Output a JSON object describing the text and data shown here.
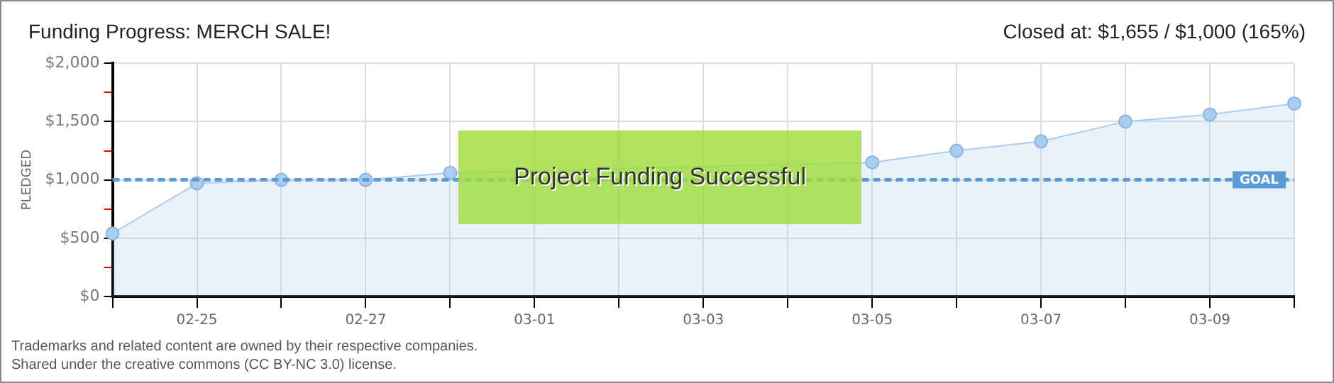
{
  "chart_data": {
    "type": "area",
    "title": "Funding Progress: MERCH SALE!",
    "subtitle": "Closed at: $1,655 / $1,000 (165%)",
    "ylabel": "PLEDGED",
    "categories": [
      null,
      "02-25",
      null,
      "02-27",
      null,
      "03-01",
      null,
      "03-03",
      null,
      "03-05",
      null,
      "03-07",
      null,
      "03-09",
      null
    ],
    "series": [
      {
        "color": "#a9cdf0",
        "values": [
          540,
          970,
          1000,
          1000,
          1060,
          null,
          null,
          null,
          null,
          1150,
          1250,
          1330,
          1500,
          1560,
          1655
        ]
      }
    ],
    "ylim": [
      0,
      2000
    ],
    "yticks": [
      {
        "value": 0,
        "label": "$0"
      },
      {
        "value": 250,
        "label": null
      },
      {
        "value": 500,
        "label": "$500"
      },
      {
        "value": 750,
        "label": null
      },
      {
        "value": 1000,
        "label": "$1,000"
      },
      {
        "value": 1250,
        "label": null
      },
      {
        "value": 1500,
        "label": "$1,500"
      },
      {
        "value": 1750,
        "label": null
      },
      {
        "value": 2000,
        "label": "$2,000"
      }
    ],
    "ref_lines": [
      {
        "axis": "y",
        "value": 1000,
        "label": "GOAL",
        "color": "#5b9bd5",
        "line_style": "dashed"
      }
    ],
    "annotations": [
      "Project Funding Successful",
      "Trademarks and related content are owned by their respective companies.",
      "Shared under the creative commons (CC BY-NC 3.0) license."
    ],
    "grid": true,
    "legend": false,
    "marker": "circle",
    "line_style": "solid"
  }
}
